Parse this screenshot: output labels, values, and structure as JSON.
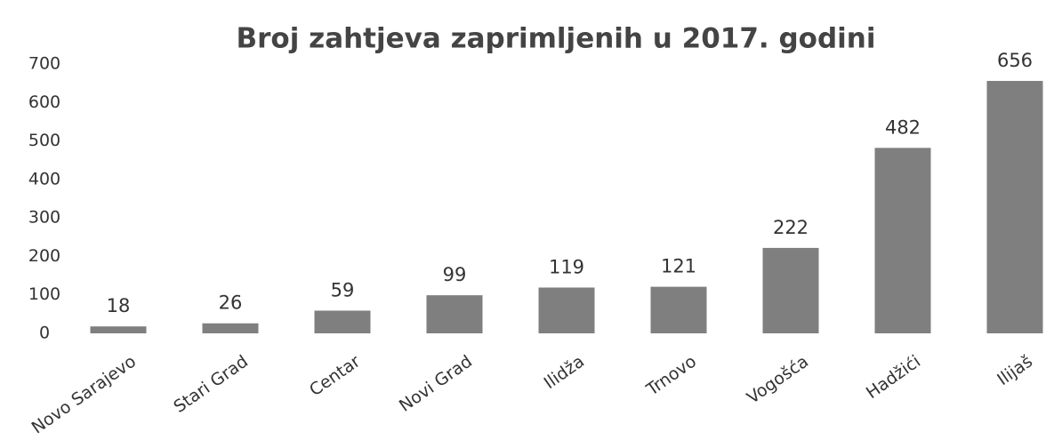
{
  "chart_data": {
    "type": "bar",
    "title": "Broj zahtjeva zaprimljenih u 2017. godini",
    "categories": [
      "Novo Sarajevo",
      "Stari Grad",
      "Centar",
      "Novi Grad",
      "Ilidža",
      "Trnovo",
      "Vogošća",
      "Hadžići",
      "Ilijaš"
    ],
    "values": [
      18,
      26,
      59,
      99,
      119,
      121,
      222,
      482,
      656
    ],
    "color": "#7f7f7f",
    "ylim": [
      0,
      700
    ],
    "yticks": [
      0,
      100,
      200,
      300,
      400,
      500,
      600,
      700
    ],
    "grid": false
  }
}
